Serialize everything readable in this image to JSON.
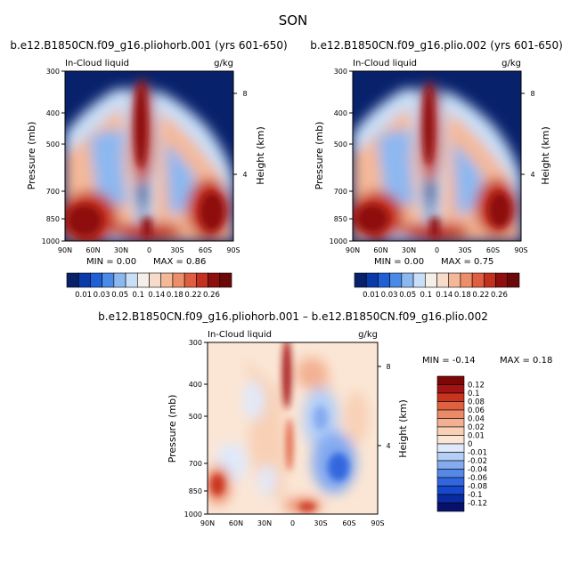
{
  "season": "SON",
  "variable": "In-Cloud liquid",
  "units": "g/kg",
  "y_axis_label": "Pressure (mb)",
  "y2_axis_label": "Height (km)",
  "pressure_ticks": [
    "300",
    "400",
    "500",
    "700",
    "850",
    "1000"
  ],
  "height_ticks": [
    "8",
    "4"
  ],
  "lat_ticks": [
    "90N",
    "60N",
    "30N",
    "0",
    "30S",
    "60S",
    "90S"
  ],
  "colors": {
    "abs_scale": [
      "#08216b",
      "#0a3aa8",
      "#1f5fd6",
      "#4a8ae6",
      "#8cb8f0",
      "#c9dff8",
      "#f6eee8",
      "#f8dccb",
      "#f4b898",
      "#ec8e6a",
      "#df5e42",
      "#c4301f",
      "#8e0f0f",
      "#6b0808"
    ],
    "diff_scale": [
      "#08106e",
      "#0a2aa0",
      "#1548cc",
      "#3166de",
      "#5688e8",
      "#84aaf0",
      "#b4cff6",
      "#dfe9fb",
      "#fbe6d5",
      "#f8d0b6",
      "#f3b091",
      "#ea8a67",
      "#df6140",
      "#c93421",
      "#a51414",
      "#7d0707"
    ]
  },
  "chart_data": [
    {
      "type": "heatmap",
      "title": "b.e12.B1850CN.f09_g16.pliohorb.001 (yrs 601-650)",
      "variable": "In-Cloud liquid",
      "units": "g/kg",
      "xlabel": "",
      "ylabel": "Pressure (mb)",
      "y2label": "Height (km)",
      "x_ticks": [
        "90N",
        "60N",
        "30N",
        "0",
        "30S",
        "60S",
        "90S"
      ],
      "y_ticks": [
        300,
        400,
        500,
        700,
        850,
        1000
      ],
      "y2_ticks": [
        8,
        4
      ],
      "ylim": [
        1000,
        300
      ],
      "min_text": "MIN =    0.00",
      "max_text": "MAX =    0.86",
      "min": 0.0,
      "max": 0.86,
      "colorbar_levels": [
        "0.01",
        "0.03",
        "0.05",
        "0.1",
        "0.14",
        "0.18",
        "0.22",
        "0.26"
      ]
    },
    {
      "type": "heatmap",
      "title": "b.e12.B1850CN.f09_g16.plio.002 (yrs 601-650)",
      "variable": "In-Cloud liquid",
      "units": "g/kg",
      "xlabel": "",
      "ylabel": "Pressure (mb)",
      "y2label": "Height (km)",
      "x_ticks": [
        "90N",
        "60N",
        "30N",
        "0",
        "30S",
        "60S",
        "90S"
      ],
      "y_ticks": [
        300,
        400,
        500,
        700,
        850,
        1000
      ],
      "y2_ticks": [
        8,
        4
      ],
      "ylim": [
        1000,
        300
      ],
      "min_text": "MIN =    0.00",
      "max_text": "MAX =    0.75",
      "min": 0.0,
      "max": 0.75,
      "colorbar_levels": [
        "0.01",
        "0.03",
        "0.05",
        "0.1",
        "0.14",
        "0.18",
        "0.22",
        "0.26"
      ]
    },
    {
      "type": "heatmap",
      "title": "b.e12.B1850CN.f09_g16.pliohorb.001 – b.e12.B1850CN.f09_g16.plio.002",
      "variable": "In-Cloud liquid",
      "units": "g/kg",
      "xlabel": "",
      "ylabel": "Pressure (mb)",
      "y2label": "Height (km)",
      "x_ticks": [
        "90N",
        "60N",
        "30N",
        "0",
        "30S",
        "60S",
        "90S"
      ],
      "y_ticks": [
        300,
        400,
        500,
        700,
        850,
        1000
      ],
      "y2_ticks": [
        8,
        4
      ],
      "ylim": [
        1000,
        300
      ],
      "min_text": "MIN =   -0.14",
      "max_text": "MAX =    0.18",
      "min": -0.14,
      "max": 0.18,
      "colorbar_levels": [
        "0.12",
        "0.1",
        "0.08",
        "0.06",
        "0.04",
        "0.02",
        "0.01",
        "0",
        "-0.01",
        "-0.02",
        "-0.04",
        "-0.06",
        "-0.08",
        "-0.1",
        "-0.12"
      ]
    }
  ]
}
